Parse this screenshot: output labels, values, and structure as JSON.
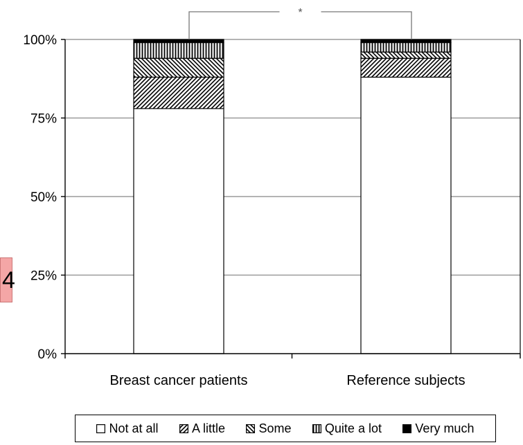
{
  "page_badge": "4",
  "chart_data": {
    "type": "bar",
    "stacked": true,
    "percent": true,
    "categories": [
      "Breast cancer patients",
      "Reference subjects"
    ],
    "series": [
      {
        "name": "Not at all",
        "values": [
          78,
          88
        ],
        "pattern": "none"
      },
      {
        "name": "A little",
        "values": [
          10,
          6
        ],
        "pattern": "diagonal-forward"
      },
      {
        "name": "Some",
        "values": [
          6,
          2
        ],
        "pattern": "diagonal-back"
      },
      {
        "name": "Quite a lot",
        "values": [
          5,
          3
        ],
        "pattern": "vertical"
      },
      {
        "name": "Very much",
        "values": [
          1,
          1
        ],
        "pattern": "solid"
      }
    ],
    "ylim": [
      0,
      100
    ],
    "y_ticks": [
      "0%",
      "25%",
      "50%",
      "75%",
      "100%"
    ],
    "y_tick_values": [
      0,
      25,
      50,
      75,
      100
    ],
    "grid": true,
    "significance_marker": "*",
    "legend_position": "bottom",
    "colors": {
      "fill": "#ffffff",
      "stroke": "#000000",
      "grid": "#9a9a9a",
      "solid": "#000000"
    }
  }
}
